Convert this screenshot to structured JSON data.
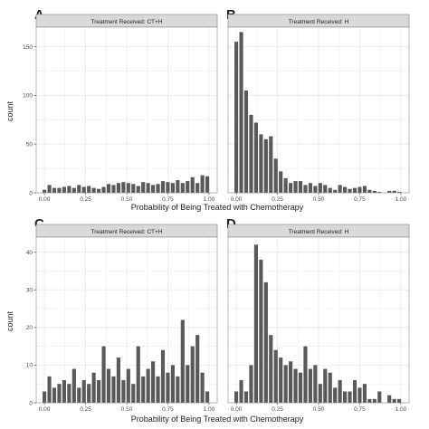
{
  "figure": {
    "shared_xlabel": "Probability of Being Treated with Chemotherapy",
    "ylabel": "count"
  },
  "chart_data": [
    {
      "type": "bar",
      "panel_letter": "A",
      "strip": "Treatment Received: CT+H",
      "xlabel": "",
      "ylabel": "count",
      "xlim": [
        -0.05,
        1.05
      ],
      "ylim": [
        0,
        170
      ],
      "x_ticks": [
        0.0,
        0.25,
        0.5,
        0.75,
        1.0
      ],
      "x_tick_labels": [
        "0.00",
        "0.25",
        "0.50",
        "0.75",
        "1.00"
      ],
      "y_ticks": [
        0,
        50,
        100,
        150
      ],
      "y_tick_labels": [
        "0",
        "50",
        "100",
        "150"
      ],
      "grid": true,
      "bin_width": 0.03,
      "x": [
        0.0,
        0.03,
        0.06,
        0.09,
        0.12,
        0.15,
        0.18,
        0.21,
        0.24,
        0.27,
        0.3,
        0.33,
        0.36,
        0.39,
        0.42,
        0.45,
        0.48,
        0.51,
        0.54,
        0.57,
        0.6,
        0.63,
        0.66,
        0.69,
        0.72,
        0.75,
        0.78,
        0.81,
        0.84,
        0.87,
        0.9,
        0.93,
        0.96,
        0.99
      ],
      "values": [
        3,
        8,
        5,
        5,
        6,
        7,
        5,
        8,
        6,
        7,
        5,
        4,
        6,
        9,
        8,
        10,
        11,
        10,
        9,
        7,
        11,
        10,
        8,
        9,
        12,
        11,
        10,
        13,
        10,
        12,
        16,
        10,
        18,
        17
      ]
    },
    {
      "type": "bar",
      "panel_letter": "B",
      "strip": "Treatment Received: H",
      "xlabel": "",
      "ylabel": "",
      "xlim": [
        -0.05,
        1.05
      ],
      "ylim": [
        0,
        170
      ],
      "x_ticks": [
        0.0,
        0.25,
        0.5,
        0.75,
        1.0
      ],
      "x_tick_labels": [
        "0.00",
        "0.25",
        "0.50",
        "0.75",
        "1.00"
      ],
      "y_ticks": [
        0,
        50,
        100,
        150
      ],
      "grid": true,
      "bin_width": 0.03,
      "x": [
        0.0,
        0.03,
        0.06,
        0.09,
        0.12,
        0.15,
        0.18,
        0.21,
        0.24,
        0.27,
        0.3,
        0.33,
        0.36,
        0.39,
        0.42,
        0.45,
        0.48,
        0.51,
        0.54,
        0.57,
        0.6,
        0.63,
        0.66,
        0.69,
        0.72,
        0.75,
        0.78,
        0.81,
        0.84,
        0.87,
        0.9,
        0.93,
        0.96,
        0.99
      ],
      "values": [
        155,
        165,
        105,
        80,
        72,
        60,
        55,
        58,
        35,
        22,
        15,
        10,
        12,
        12,
        8,
        10,
        7,
        10,
        8,
        5,
        3,
        8,
        6,
        4,
        5,
        6,
        7,
        3,
        2,
        1,
        0,
        2,
        2,
        1
      ]
    },
    {
      "type": "bar",
      "panel_letter": "C",
      "strip": "Treatment Received: CT+H",
      "xlabel": "Probability of Being Treated with Chemotherapy",
      "ylabel": "count",
      "xlim": [
        -0.05,
        1.05
      ],
      "ylim": [
        0,
        44
      ],
      "x_ticks": [
        0.0,
        0.25,
        0.5,
        0.75,
        1.0
      ],
      "x_tick_labels": [
        "0.00",
        "0.25",
        "0.50",
        "0.75",
        "1.00"
      ],
      "y_ticks": [
        0,
        10,
        20,
        30,
        40
      ],
      "y_tick_labels": [
        "0",
        "10",
        "20",
        "30",
        "40"
      ],
      "grid": true,
      "bin_width": 0.03,
      "x": [
        0.0,
        0.03,
        0.06,
        0.09,
        0.12,
        0.15,
        0.18,
        0.21,
        0.24,
        0.27,
        0.3,
        0.33,
        0.36,
        0.39,
        0.42,
        0.45,
        0.48,
        0.51,
        0.54,
        0.57,
        0.6,
        0.63,
        0.66,
        0.69,
        0.72,
        0.75,
        0.78,
        0.81,
        0.84,
        0.87,
        0.9,
        0.93,
        0.96,
        0.99
      ],
      "values": [
        3,
        7,
        4,
        5,
        6,
        5,
        9,
        4,
        6,
        5,
        8,
        6,
        15,
        9,
        7,
        12,
        6,
        9,
        5,
        15,
        7,
        9,
        11,
        7,
        14,
        8,
        10,
        7,
        22,
        10,
        15,
        18,
        8,
        3
      ]
    },
    {
      "type": "bar",
      "panel_letter": "D",
      "strip": "Treatment Received: H",
      "xlabel": "",
      "ylabel": "",
      "xlim": [
        -0.05,
        1.05
      ],
      "ylim": [
        0,
        44
      ],
      "x_ticks": [
        0.0,
        0.25,
        0.5,
        0.75,
        1.0
      ],
      "x_tick_labels": [
        "0.00",
        "0.25",
        "0.50",
        "0.75",
        "1.00"
      ],
      "y_ticks": [
        0,
        10,
        20,
        30,
        40
      ],
      "grid": true,
      "bin_width": 0.03,
      "x": [
        0.0,
        0.03,
        0.06,
        0.09,
        0.12,
        0.15,
        0.18,
        0.21,
        0.24,
        0.27,
        0.3,
        0.33,
        0.36,
        0.39,
        0.42,
        0.45,
        0.48,
        0.51,
        0.54,
        0.57,
        0.6,
        0.63,
        0.66,
        0.69,
        0.72,
        0.75,
        0.78,
        0.81,
        0.84,
        0.87,
        0.9,
        0.93,
        0.96,
        0.99
      ],
      "values": [
        3,
        6,
        3,
        10,
        42,
        38,
        32,
        18,
        14,
        12,
        10,
        11,
        9,
        8,
        15,
        9,
        10,
        5,
        9,
        8,
        4,
        6,
        3,
        3,
        6,
        4,
        5,
        1,
        1,
        3,
        0,
        2,
        1,
        1
      ]
    }
  ],
  "colors": {
    "bar": "#595959",
    "panel_bg": "#ffffff",
    "grid": "#ebebeb",
    "strip_bg": "#d9d9d9",
    "strip_border": "#7f7f7f",
    "panel_border": "#8c8c8c",
    "text": "#222222",
    "tick_text": "#4d4d4d"
  }
}
